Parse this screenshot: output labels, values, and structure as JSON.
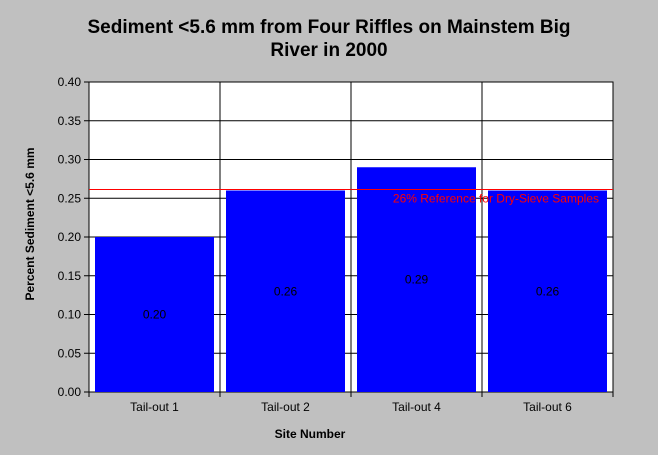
{
  "chart_data": {
    "type": "bar",
    "title_lines": [
      "Sediment <5.6 mm from Four Riffles on Mainstem Big",
      "River in 2000"
    ],
    "xlabel": "Site Number",
    "ylabel": "Percent Sediment <5.6 mm",
    "categories": [
      "Tail-out 1",
      "Tail-out 2",
      "Tail-out 4",
      "Tail-out 6"
    ],
    "values": [
      0.2,
      0.26,
      0.29,
      0.26
    ],
    "data_labels": [
      "0.20",
      "0.26",
      "0.29",
      "0.26"
    ],
    "ylim": [
      0,
      0.4
    ],
    "yticks": [
      "0.00",
      "0.05",
      "0.10",
      "0.15",
      "0.20",
      "0.25",
      "0.30",
      "0.35",
      "0.40"
    ],
    "reference_line": {
      "value": 0.26,
      "label": "26% Reference for Dry-Sieve Samples",
      "color": "#ff0000"
    },
    "bar_color": "#0000ff",
    "grid": true,
    "background_color": "#c0c0c0",
    "plot_background_color": "#ffffff"
  }
}
